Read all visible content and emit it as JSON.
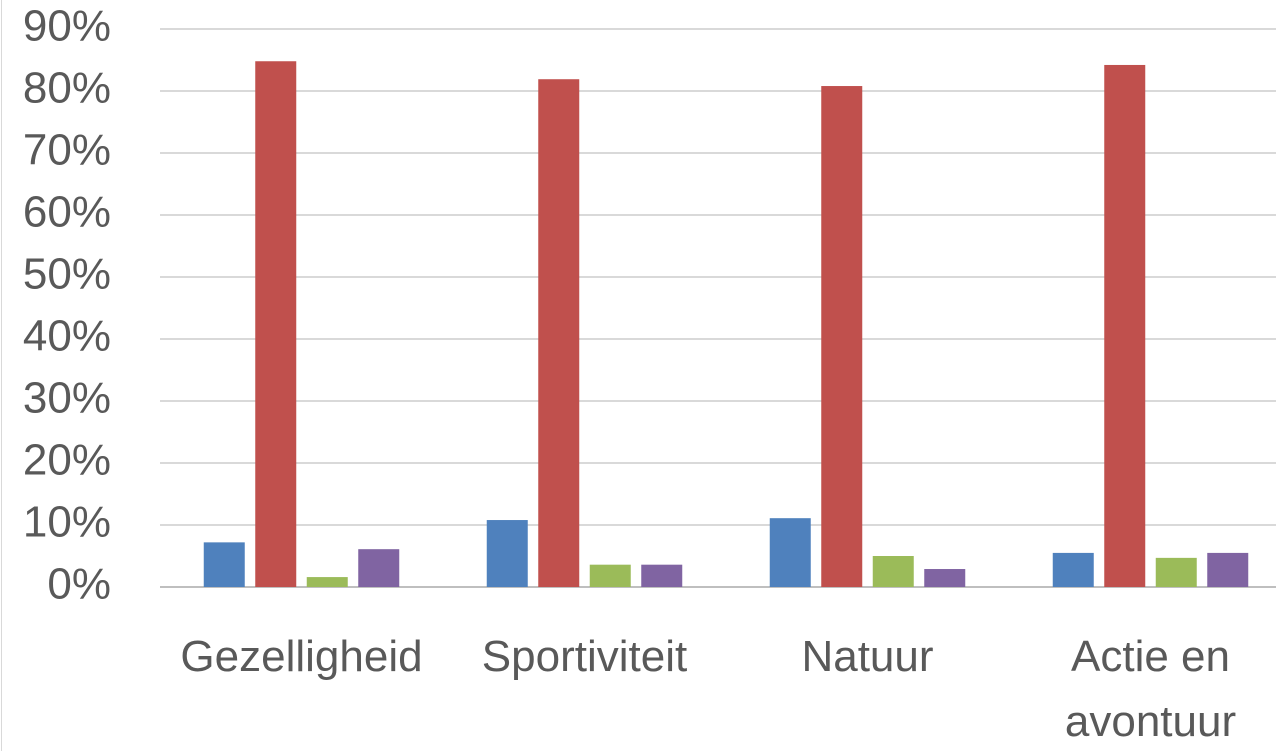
{
  "chart_data": {
    "type": "bar",
    "categories": [
      "Gezelligheid",
      "Sportiviteit",
      "Natuur",
      "Actie en avontuur"
    ],
    "series": [
      {
        "color": "#4f81bd",
        "values": [
          7.2,
          10.8,
          11.1,
          5.5
        ]
      },
      {
        "color": "#c0504d",
        "values": [
          84.8,
          81.9,
          80.8,
          84.2
        ]
      },
      {
        "color": "#9bbb59",
        "values": [
          1.6,
          3.6,
          5.0,
          4.7
        ]
      },
      {
        "color": "#8064a2",
        "values": [
          6.1,
          3.6,
          2.9,
          5.5
        ]
      }
    ],
    "ylim": [
      0,
      90
    ],
    "yticks": [
      {
        "value": 0,
        "label": "0%"
      },
      {
        "value": 10,
        "label": "10%"
      },
      {
        "value": 20,
        "label": "20%"
      },
      {
        "value": 30,
        "label": "30%"
      },
      {
        "value": 40,
        "label": "40%"
      },
      {
        "value": 50,
        "label": "50%"
      },
      {
        "value": 60,
        "label": "60%"
      },
      {
        "value": 70,
        "label": "70%"
      },
      {
        "value": 80,
        "label": "80%"
      },
      {
        "value": 90,
        "label": "90%"
      }
    ],
    "grid": true
  }
}
